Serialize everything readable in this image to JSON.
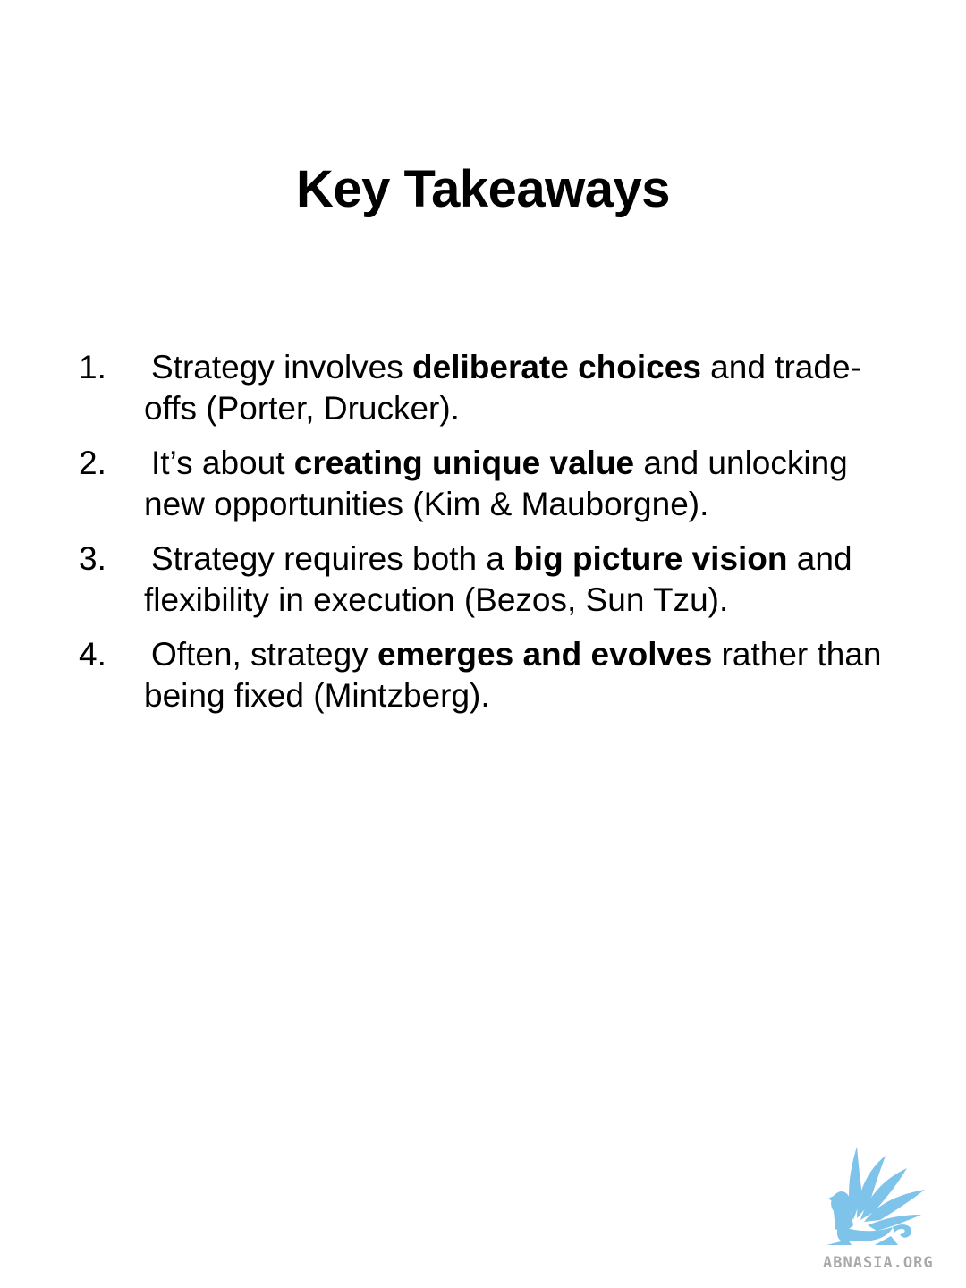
{
  "slide": {
    "title": "Key Takeaways",
    "items": [
      {
        "number": "1.",
        "before": "Strategy involves ",
        "bold": "deliberate choices",
        "after": " and trade-offs (Porter, Drucker)."
      },
      {
        "number": "2.",
        "before": "It’s about ",
        "bold": "creating unique value",
        "after": " and unlocking new opportunities (Kim & Mauborgne)."
      },
      {
        "number": "3.",
        "before": "Strategy requires both a ",
        "bold": "big picture vision",
        "after": " and flexibility in execution (Bezos, Sun Tzu)."
      },
      {
        "number": "4.",
        "before": "Often, strategy ",
        "bold": "emerges and evolves",
        "after": " rather than being fixed (Mintzberg)."
      }
    ]
  },
  "logo": {
    "text": "ABNASIA.ORG",
    "icon": "griffin-logo-icon",
    "color": "#7ec3ea"
  }
}
